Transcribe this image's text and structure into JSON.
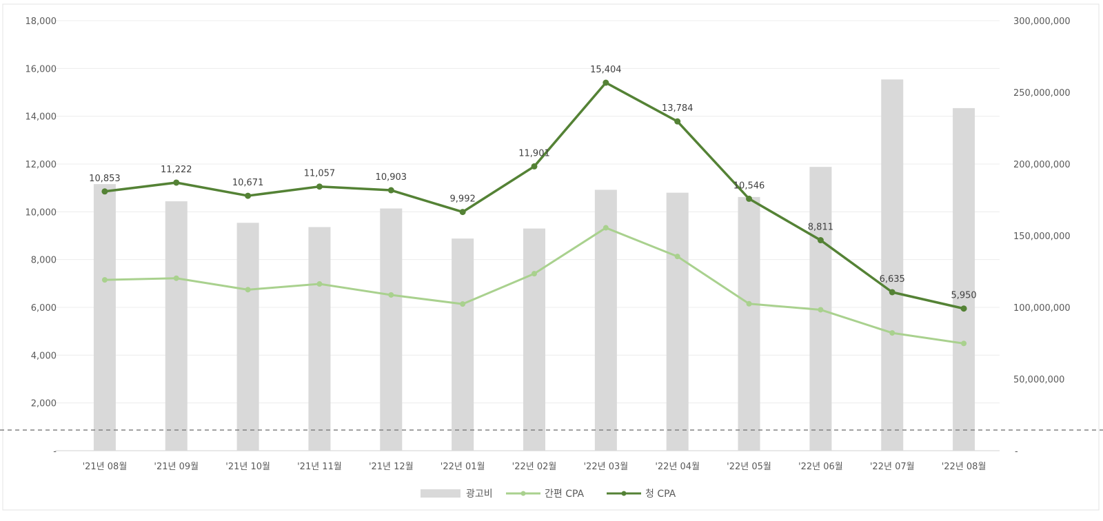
{
  "chart_data": {
    "type": "bar",
    "categories": [
      "'21년 08월",
      "'21년 09월",
      "'21년 10월",
      "'21년 11월",
      "'21년 12월",
      "'22년 01월",
      "'22년 02월",
      "'22년 03월",
      "'22년 04월",
      "'22년 05월",
      "'22년 06월",
      "'22년 07월",
      "'22년 08월"
    ],
    "series": [
      {
        "name": "광고비",
        "kind": "bar",
        "axis": "right",
        "color": "#d9d9d9",
        "values": [
          186000000,
          174000000,
          159000000,
          156000000,
          169000000,
          148000000,
          155000000,
          182000000,
          180000000,
          177000000,
          198000000,
          259000000,
          239000000
        ]
      },
      {
        "name": "간편 CPA",
        "kind": "line",
        "axis": "left",
        "color": "#a9d18e",
        "values": [
          7150,
          7220,
          6740,
          6980,
          6520,
          6140,
          7410,
          9330,
          8130,
          6150,
          5900,
          4930,
          4490
        ]
      },
      {
        "name": "청 CPA",
        "kind": "line",
        "axis": "left",
        "color": "#548235",
        "values": [
          10853,
          11222,
          10671,
          11057,
          10903,
          9992,
          11901,
          15404,
          13784,
          10546,
          8811,
          6635,
          5950
        ],
        "data_labels": [
          "10,853",
          "11,222",
          "10,671",
          "11,057",
          "10,903",
          "9,992",
          "11,901",
          "15,404",
          "13,784",
          "10,546",
          "8,811",
          "6,635",
          "5,950"
        ]
      }
    ],
    "y_left": {
      "range": [
        0,
        18000
      ],
      "ticks": [
        0,
        2000,
        4000,
        6000,
        8000,
        10000,
        12000,
        14000,
        16000,
        18000
      ],
      "tick_labels": [
        "-",
        "2,000",
        "4,000",
        "6,000",
        "8,000",
        "10,000",
        "12,000",
        "14,000",
        "16,000",
        "18,000"
      ]
    },
    "y_right": {
      "range": [
        0,
        300000000
      ],
      "ticks": [
        0,
        50000000,
        100000000,
        150000000,
        200000000,
        250000000,
        300000000
      ],
      "tick_labels": [
        "-",
        "50,000,000",
        "100,000,000",
        "150,000,000",
        "200,000,000",
        "250,000,000",
        "300,000,000"
      ]
    },
    "grid": true,
    "legend": {
      "position": "bottom",
      "items": [
        "광고비",
        "간편 CPA",
        "청 CPA"
      ]
    }
  }
}
